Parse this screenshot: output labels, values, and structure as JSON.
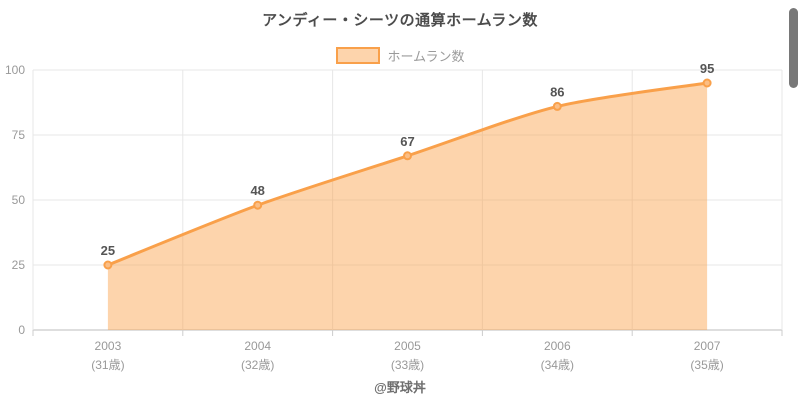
{
  "title": "アンディー・シーツの通算ホームラン数",
  "legend": {
    "label": "ホームラン数"
  },
  "footer": "@野球丼",
  "colors": {
    "line": "#f9a04a",
    "area": "rgba(250,160,70,0.45)",
    "point_fill": "#fbbe85",
    "data_label": "#555555",
    "axis_text": "#999999",
    "grid": "#e7e7e7",
    "axis_line": "#bdbdbd",
    "tick": "#cccccc",
    "title_text": "#4c4c4c",
    "legend_text": "#9b9b9b",
    "scrollbar": "#787878"
  },
  "chart_data": {
    "type": "area",
    "title": "アンディー・シーツの通算ホームラン数",
    "categories": [
      "2003",
      "2004",
      "2005",
      "2006",
      "2007"
    ],
    "category_sublabels": [
      "(31歳)",
      "(32歳)",
      "(33歳)",
      "(34歳)",
      "(35歳)"
    ],
    "series": [
      {
        "name": "ホームラン数",
        "values": [
          25,
          48,
          67,
          86,
          95
        ]
      }
    ],
    "data_labels": [
      25,
      48,
      67,
      86,
      95
    ],
    "xlabel": "",
    "ylabel": "",
    "ylim": [
      0,
      100
    ],
    "yticks": [
      0,
      25,
      50,
      75,
      100
    ],
    "grid": true,
    "legend_position": "top"
  }
}
